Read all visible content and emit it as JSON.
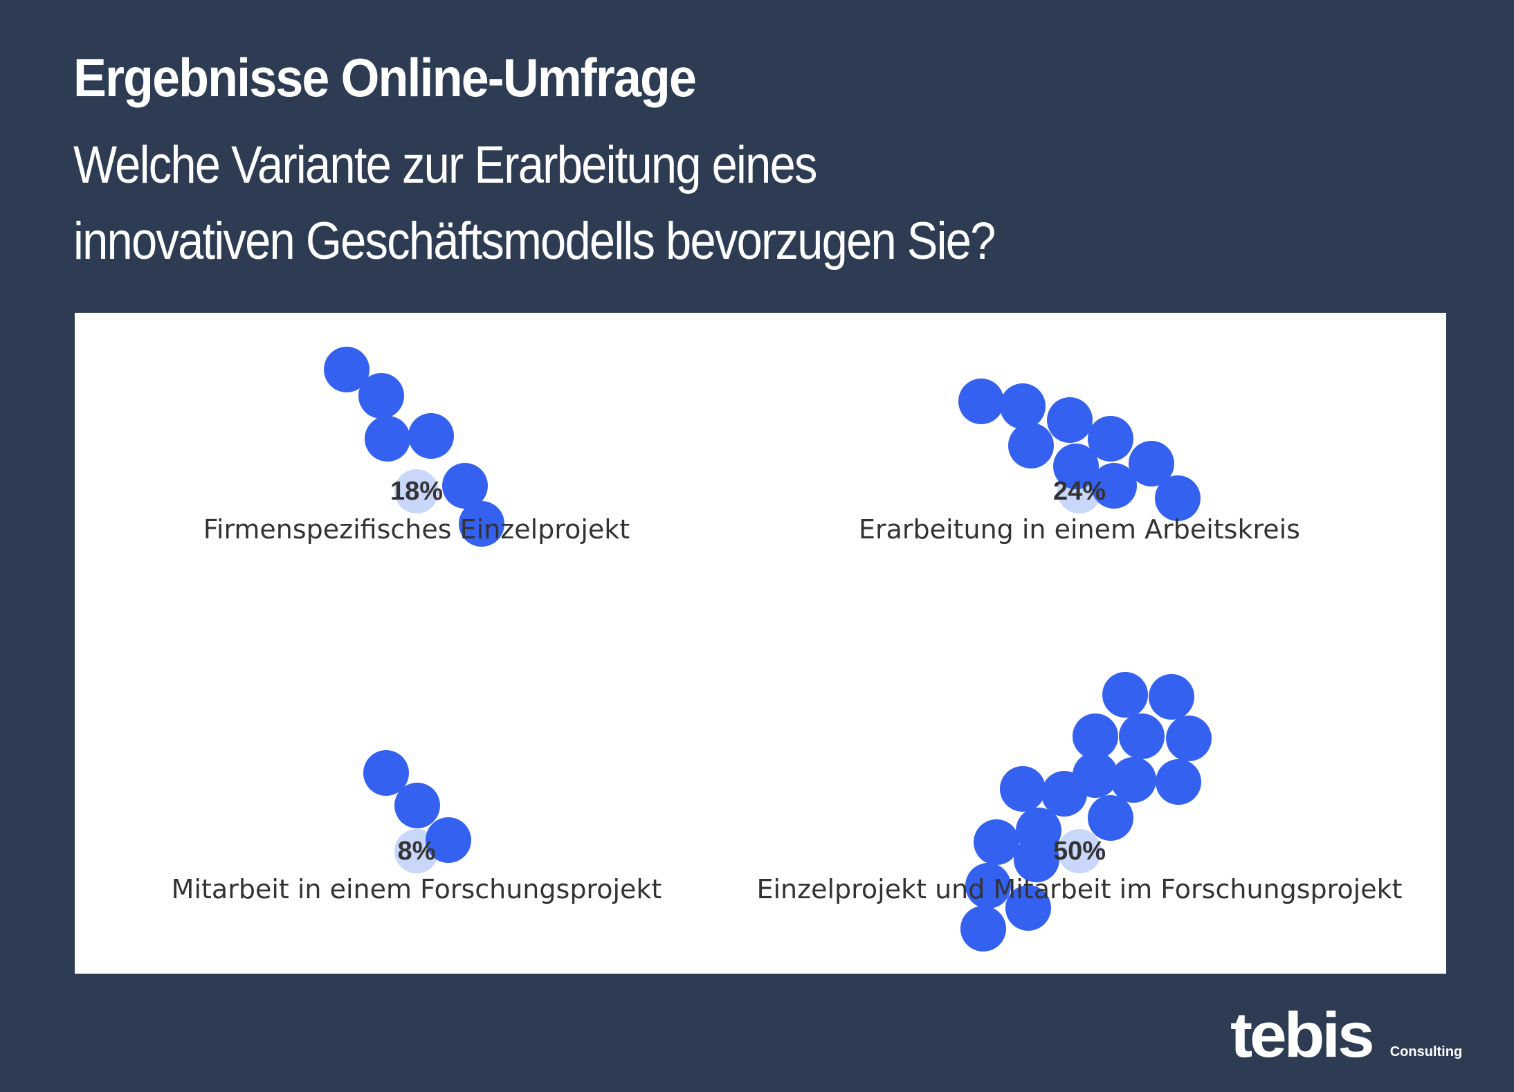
{
  "header": {
    "title": "Ergebnisse Online-Umfrage",
    "subtitle_line1": "Welche Variante zur Erarbeitung eines",
    "subtitle_line2": "innovativen Geschäftsmodells bevorzugen Sie?"
  },
  "logo": {
    "word": "tebis",
    "sub": "Consulting"
  },
  "colors": {
    "background": "#2d3c53",
    "panel": "#ffffff",
    "dot": "#3461f0",
    "dot_center": "#c9d7fb",
    "text": "#333333"
  },
  "chart_data": {
    "type": "bubble-cluster",
    "categories": [
      "Firmenspezifisches Einzelprojekt",
      "Erarbeitung in einem Arbeitskreis",
      "Mitarbeit in einem Forschungsprojekt",
      "Einzelprojekt und Mitarbeit im Forschungsprojekt"
    ],
    "values": [
      18,
      24,
      8,
      50
    ],
    "value_labels": [
      "18%",
      "24%",
      "8%",
      "50%"
    ],
    "unit": "%"
  }
}
